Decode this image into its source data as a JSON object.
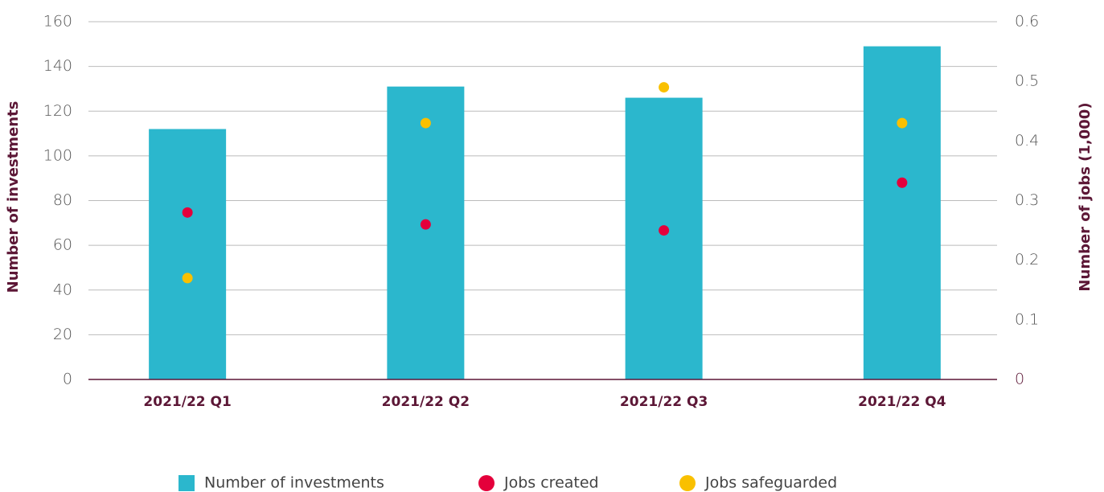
{
  "chart_data": {
    "type": "bar",
    "categories": [
      "2021/22 Q1",
      "2021/22 Q2",
      "2021/22 Q3",
      "2021/22 Q4"
    ],
    "series": [
      {
        "name": "Number of investments",
        "color": "#2bb7cd",
        "type": "bar",
        "values": [
          112,
          131,
          126,
          149
        ]
      },
      {
        "name": "Jobs created",
        "color": "#e4003b",
        "type": "scatter",
        "axis": "y2",
        "values": [
          0.28,
          0.26,
          0.25,
          0.33
        ]
      },
      {
        "name": "Jobs safeguarded",
        "color": "#f9c000",
        "type": "scatter",
        "axis": "y2",
        "values": [
          0.17,
          0.43,
          0.49,
          0.43
        ]
      }
    ],
    "ylabel": "Number of investments",
    "y2label": "Number of jobs (1,000)",
    "ylim": [
      0,
      160
    ],
    "yticks": [
      0,
      20,
      40,
      60,
      80,
      100,
      120,
      140,
      160
    ],
    "y2lim": [
      0,
      0.6
    ],
    "y2ticks": [
      0,
      0.1,
      0.2,
      0.3,
      0.4,
      0.5,
      0.6
    ],
    "grid": true,
    "legend": "bottom"
  }
}
